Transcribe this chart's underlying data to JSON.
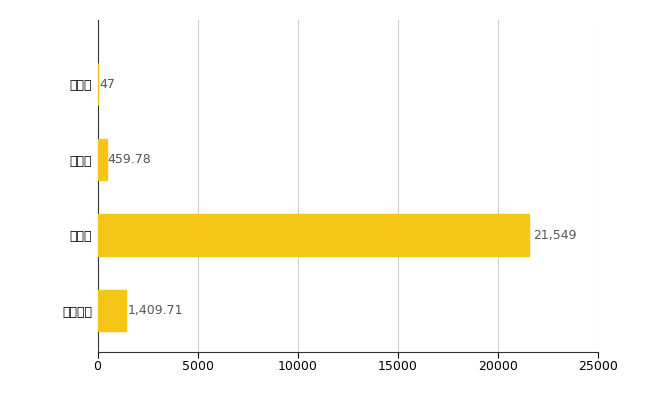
{
  "categories": [
    "全国平均",
    "県最大",
    "県平均",
    "羽幌町"
  ],
  "values": [
    1409.71,
    21549,
    459.78,
    47
  ],
  "labels": [
    "1,409.71",
    "21,549",
    "459.78",
    "47"
  ],
  "bar_color": "#F5C518",
  "background_color": "#ffffff",
  "xlim": [
    0,
    25000
  ],
  "xticks": [
    0,
    5000,
    10000,
    15000,
    20000,
    25000
  ],
  "xtick_labels": [
    "0",
    "5000",
    "10000",
    "15000",
    "20000",
    "25000"
  ],
  "bar_height": 0.55,
  "grid_color": "#cccccc",
  "label_fontsize": 9,
  "tick_fontsize": 9,
  "label_color": "#555555"
}
